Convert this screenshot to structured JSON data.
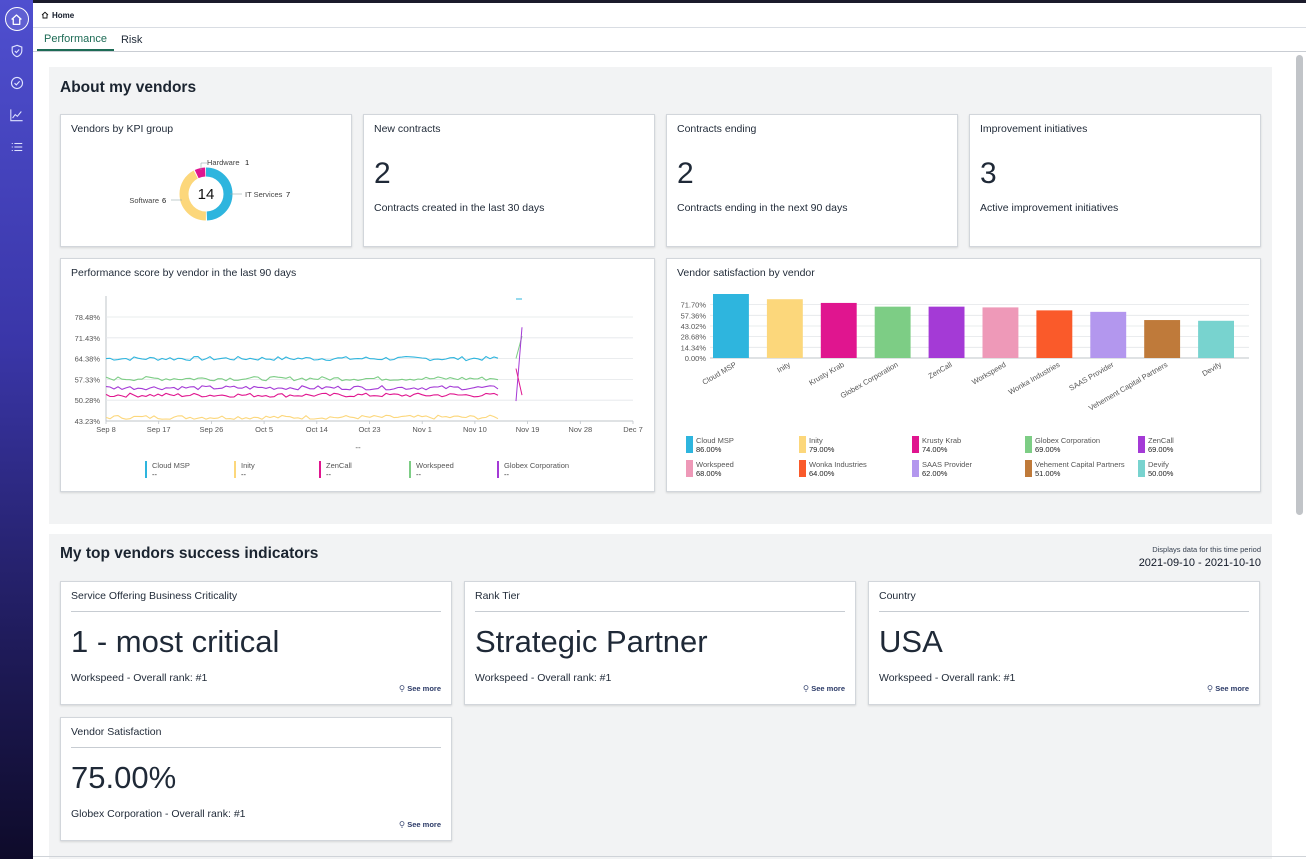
{
  "breadcrumb": {
    "home": "Home"
  },
  "tabs": [
    {
      "label": "Performance"
    },
    {
      "label": "Risk"
    }
  ],
  "about": {
    "title": "About my vendors",
    "kpi": {
      "title": "Vendors by KPI group",
      "total": "14",
      "segments": [
        {
          "name": "IT Services",
          "value": 7,
          "value_label": "7",
          "color": "#2eb5de"
        },
        {
          "name": "Software",
          "value": 6,
          "value_label": "6",
          "color": "#fcd77b"
        },
        {
          "name": "Hardware",
          "value": 1,
          "value_label": "1",
          "color": "#e0158f"
        }
      ]
    },
    "new_contracts": {
      "title": "New contracts",
      "value": "2",
      "sub": "Contracts created in the last 30 days"
    },
    "contracts_ending": {
      "title": "Contracts ending",
      "value": "2",
      "sub": "Contracts ending in the next 90 days"
    },
    "improvement": {
      "title": "Improvement initiatives",
      "value": "3",
      "sub": "Active improvement initiatives"
    }
  },
  "perf_chart": {
    "title": "Performance score by vendor in the last 90 days",
    "y_ticks": [
      "78.48%",
      "71.43%",
      "64.38%",
      "57.33%",
      "50.28%",
      "43.23%"
    ],
    "x_ticks": [
      "Sep 8",
      "Sep 17",
      "Sep 26",
      "Oct 5",
      "Oct 14",
      "Oct 23",
      "Nov 1",
      "Nov 10",
      "Nov 19",
      "Nov 28",
      "Dec 7"
    ],
    "center_label": "--",
    "legend": [
      {
        "name": "Cloud MSP",
        "value": "--",
        "color": "#2eb5de"
      },
      {
        "name": "Inity",
        "value": "--",
        "color": "#fcd77b"
      },
      {
        "name": "ZenCall",
        "value": "--",
        "color": "#e0158f"
      },
      {
        "name": "Workspeed",
        "value": "--",
        "color": "#7dcd85"
      },
      {
        "name": "Globex Corporation",
        "value": "--",
        "color": "#a43ad6"
      }
    ]
  },
  "sat_chart": {
    "title": "Vendor satisfaction by vendor",
    "y_ticks": [
      "71.70%",
      "57.36%",
      "43.02%",
      "28.68%",
      "14.34%",
      "0.00%"
    ],
    "vendors": [
      {
        "name": "Cloud MSP",
        "value": 86,
        "label": "86.00%",
        "color": "#2eb5de"
      },
      {
        "name": "Inity",
        "value": 79,
        "label": "79.00%",
        "color": "#fcd77b"
      },
      {
        "name": "Krusty Krab",
        "value": 74,
        "label": "74.00%",
        "color": "#e0158f"
      },
      {
        "name": "Globex Corporation",
        "value": 69,
        "label": "69.00%",
        "color": "#7dcd85"
      },
      {
        "name": "ZenCall",
        "value": 69,
        "label": "69.00%",
        "color": "#a43ad6"
      },
      {
        "name": "Workspeed",
        "value": 68,
        "label": "68.00%",
        "color": "#ee99b8"
      },
      {
        "name": "Wonka Industries",
        "value": 64,
        "label": "64.00%",
        "color": "#fa5a2a"
      },
      {
        "name": "SAAS Provider",
        "value": 62,
        "label": "62.00%",
        "color": "#b397ee"
      },
      {
        "name": "Vehement Capital Partners",
        "value": 51,
        "label": "51.00%",
        "color": "#bf7a3a"
      },
      {
        "name": "Devify",
        "value": 50,
        "label": "50.00%",
        "color": "#78d3cf"
      }
    ]
  },
  "chart_data": [
    {
      "type": "pie",
      "title": "Vendors by KPI group",
      "categories": [
        "IT Services",
        "Software",
        "Hardware"
      ],
      "values": [
        7,
        6,
        1
      ]
    },
    {
      "type": "line",
      "title": "Performance score by vendor in the last 90 days",
      "ylim": [
        43.23,
        78.48
      ],
      "x_range": [
        "Sep 8",
        "Dec 7"
      ],
      "series": [
        {
          "name": "Cloud MSP",
          "approx_level": 64.4
        },
        {
          "name": "Inity",
          "approx_level": 44.5
        },
        {
          "name": "ZenCall",
          "approx_level": 52.0
        },
        {
          "name": "Workspeed",
          "approx_level": 57.6
        },
        {
          "name": "Globex Corporation",
          "approx_level": 54.5
        }
      ]
    },
    {
      "type": "bar",
      "title": "Vendor satisfaction by vendor",
      "categories": [
        "Cloud MSP",
        "Inity",
        "Krusty Krab",
        "Globex Corporation",
        "ZenCall",
        "Workspeed",
        "Wonka Industries",
        "SAAS Provider",
        "Vehement Capital Partners",
        "Devify"
      ],
      "values": [
        86,
        79,
        74,
        69,
        69,
        68,
        64,
        62,
        51,
        50
      ],
      "ylim": [
        0,
        86
      ]
    }
  ],
  "indicators": {
    "title": "My top vendors success indicators",
    "period_label": "Displays data for this time period",
    "period_value": "2021-09-10 - 2021-10-10",
    "see_more": "See more",
    "cards": [
      {
        "title": "Service Offering Business Criticality",
        "value": "1 - most critical",
        "sub": "Workspeed - Overall rank: #1"
      },
      {
        "title": "Rank Tier",
        "value": "Strategic Partner",
        "sub": "Workspeed - Overall rank: #1"
      },
      {
        "title": "Country",
        "value": "USA",
        "sub": "Workspeed - Overall rank: #1"
      },
      {
        "title": "Vendor Satisfaction",
        "value": "75.00%",
        "sub": "Globex Corporation - Overall rank: #1"
      }
    ]
  }
}
